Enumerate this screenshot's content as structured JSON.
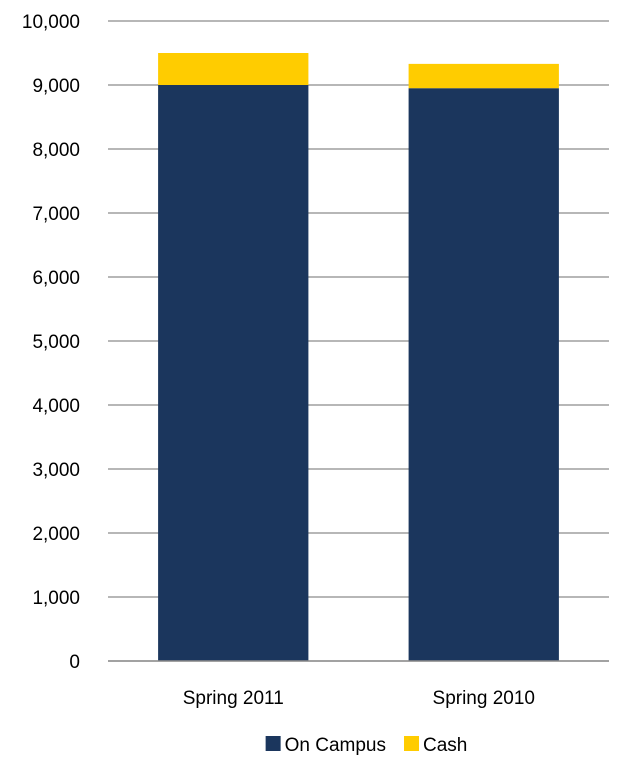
{
  "chart_data": {
    "type": "bar",
    "stacked": true,
    "title": "",
    "xlabel": "",
    "ylabel": "",
    "categories": [
      "Spring 2011",
      "Spring 2010"
    ],
    "series": [
      {
        "name": "On Campus",
        "values": [
          9000,
          8950
        ],
        "color": "#1b365d"
      },
      {
        "name": "Cash",
        "values": [
          500,
          380
        ],
        "color": "#ffcc00"
      }
    ],
    "ylim": [
      0,
      10000
    ],
    "yticks": [
      0,
      1000,
      2000,
      3000,
      4000,
      5000,
      6000,
      7000,
      8000,
      9000,
      10000
    ],
    "ytick_labels": [
      "0",
      "1,000",
      "2,000",
      "3,000",
      "4,000",
      "5,000",
      "6,000",
      "7,000",
      "8,000",
      "9,000",
      "10,000"
    ],
    "grid": true,
    "legend_position": "bottom"
  }
}
